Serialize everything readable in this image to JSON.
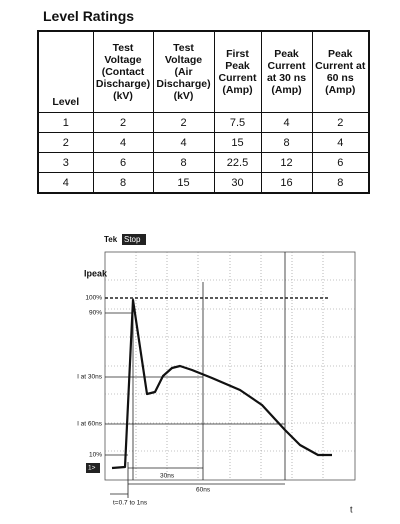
{
  "header": {
    "title": "Level Ratings"
  },
  "table": {
    "columns": [
      "Level",
      "Test Voltage (Contact Discharge) (kV)",
      "Test Voltage (Air Discharge) (kV)",
      "First Peak Current (Amp)",
      "Peak Current at 30 ns (Amp)",
      "Peak Current at 60 ns (Amp)"
    ],
    "rows": [
      [
        "1",
        "2",
        "2",
        "7.5",
        "4",
        "2"
      ],
      [
        "2",
        "4",
        "4",
        "15",
        "8",
        "4"
      ],
      [
        "3",
        "6",
        "8",
        "22.5",
        "12",
        "6"
      ],
      [
        "4",
        "8",
        "15",
        "30",
        "16",
        "8"
      ]
    ]
  },
  "scope": {
    "brand": "Tek",
    "status": "Stop",
    "y_title": "Ipeak",
    "levels": [
      "100%",
      "90%",
      "I at 30ns",
      "I at 60ns",
      "10%"
    ],
    "channel": "1>",
    "span_30": "30ns",
    "span_60": "60ns",
    "rise_time": "t=0.7 to 1ns",
    "x_title": "t"
  }
}
